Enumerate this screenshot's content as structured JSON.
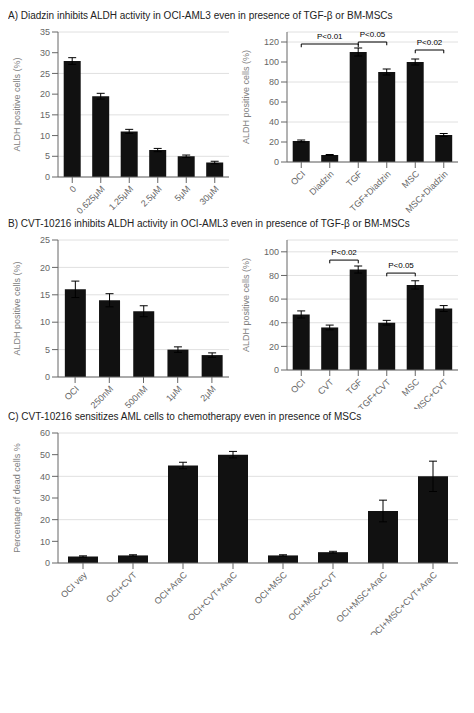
{
  "chart_data": [
    {
      "type": "bar",
      "title": "A)  Diadzin inhibits ALDH activity in OCI-AML3 even in presence of TGF-β or BM-MSCs",
      "categories": [
        "0",
        "0.625μM",
        "1.25μM",
        "2.5μM",
        "5μM",
        "30μM"
      ],
      "values": [
        28.0,
        19.5,
        11.0,
        6.5,
        5.0,
        3.5
      ],
      "errors": [
        0.8,
        0.7,
        0.5,
        0.4,
        0.3,
        0.3
      ],
      "ylabel": "ALDH positive cells (%)",
      "ylim": [
        0,
        35
      ],
      "yticks": [
        0,
        5,
        10,
        15,
        20,
        25,
        30,
        35
      ],
      "grid": true,
      "color": "#111111"
    },
    {
      "type": "bar",
      "categories": [
        "OCI",
        "Diadzin",
        "TGF",
        "TGF+Diadzin",
        "MSC",
        "MSC+Diadzin"
      ],
      "values": [
        21.0,
        7.0,
        110.0,
        90.0,
        100.0,
        27.0
      ],
      "errors": [
        1.0,
        0.5,
        4.0,
        3.0,
        3.0,
        1.5
      ],
      "ylabel": "ALDH positive cells (%)",
      "ylim": [
        0,
        130
      ],
      "yticks": [
        0,
        20,
        40,
        60,
        80,
        100,
        120
      ],
      "grid": true,
      "color": "#111111",
      "annotations": [
        {
          "text": "P<0.01",
          "from": "OCI",
          "to": "TGF",
          "y": 118
        },
        {
          "text": "P<0.05",
          "from": "TGF",
          "to": "TGF+Diadzin",
          "y": 120
        },
        {
          "text": "P<0.02",
          "from": "MSC",
          "to": "MSC+Diadzin",
          "y": 112
        }
      ]
    },
    {
      "type": "bar",
      "title": "B)  CVT-10216 inhibits ALDH activity in OCI-AML3 even in presence of TGF-β or BM-MSCs",
      "categories": [
        "OCI",
        "250nM",
        "500nM",
        "1μM",
        "2μM"
      ],
      "values": [
        16.0,
        14.0,
        12.0,
        5.0,
        4.0
      ],
      "errors": [
        1.5,
        1.2,
        1.0,
        0.5,
        0.4
      ],
      "ylabel": "ALDH positive cells (%)",
      "ylim": [
        0,
        25
      ],
      "yticks": [
        0,
        5,
        10,
        15,
        20,
        25
      ],
      "grid": true,
      "color": "#111111"
    },
    {
      "type": "bar",
      "categories": [
        "OCI",
        "CVT",
        "TGF",
        "TGF+CVT",
        "MSC",
        "MSC+CVT"
      ],
      "values": [
        47.0,
        36.0,
        85.0,
        40.0,
        72.0,
        52.0
      ],
      "errors": [
        3.0,
        2.0,
        3.0,
        2.0,
        3.5,
        2.5
      ],
      "ylabel": "ALDH positive cells (%)",
      "ylim": [
        0,
        110
      ],
      "yticks": [
        0,
        20,
        40,
        60,
        80,
        100
      ],
      "grid": true,
      "color": "#111111",
      "annotations": [
        {
          "text": "P<0.02",
          "from": "CVT",
          "to": "TGF",
          "y": 93
        },
        {
          "text": "P<0.05",
          "from": "TGF+CVT",
          "to": "MSC",
          "y": 82
        }
      ]
    },
    {
      "type": "bar",
      "title": "C) CVT-10216 sensitizes AML cells to chemotherapy even in presence of MSCs",
      "categories": [
        "OCI vey",
        "OCI+CVT",
        "OCI+AraC",
        "OCI+CVT+AraC",
        "OCI+MSC",
        "OCI+MSC+CVT",
        "OCI+MSC+AraC",
        "OCI+MSC+CVT+AraC"
      ],
      "values": [
        3.0,
        3.5,
        45.0,
        50.0,
        3.5,
        5.0,
        24.0,
        40.0
      ],
      "errors": [
        0.3,
        0.3,
        1.5,
        1.5,
        0.3,
        0.4,
        5.0,
        7.0
      ],
      "ylabel": "Percentage of dead cells %",
      "ylim": [
        0,
        60
      ],
      "yticks": [
        0,
        10,
        20,
        30,
        40,
        50,
        60
      ],
      "grid": true,
      "color": "#111111"
    }
  ]
}
